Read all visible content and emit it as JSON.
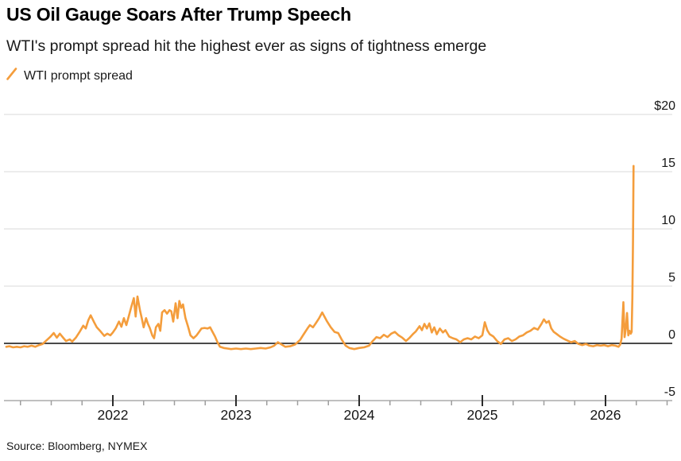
{
  "header": {
    "title": "US Oil Gauge Soars After Trump Speech",
    "subtitle": "WTI's prompt spread hit the highest ever as signs of tightness emerge"
  },
  "legend": {
    "items": [
      {
        "label": "WTI prompt spread",
        "marker": "slash-icon",
        "color": "#F49D3C"
      }
    ]
  },
  "source": "Source: Bloomberg, NYMEX",
  "colors": {
    "series": "#F49D3C",
    "gridline": "#D9D9D9",
    "zero_line": "#4A4A4A",
    "axis_line": "#ABABAB",
    "minor_tick": "#9E9E9E",
    "major_tick": "#2B2B2B",
    "text": "#161616"
  },
  "chart_data": {
    "type": "line",
    "title": "US Oil Gauge Soars After Trump Speech",
    "subtitle": "WTI's prompt spread hit the highest ever as signs of tightness emerge",
    "legend_position": "top-left",
    "grid": "horizontal",
    "y_axis": {
      "side": "right",
      "range": [
        -5,
        20
      ],
      "ticks": [
        {
          "value": 20,
          "label": "$20"
        },
        {
          "value": 15,
          "label": "15"
        },
        {
          "value": 10,
          "label": "10"
        },
        {
          "value": 5,
          "label": "5"
        },
        {
          "value": 0,
          "label": "0"
        },
        {
          "value": -5,
          "label": "-5"
        }
      ],
      "zero_line_emphasized": true
    },
    "x_axis": {
      "range_decimal_years": [
        2021.11,
        2026.55
      ],
      "minor_tick_interval_years": 0.25,
      "ticks_major": [
        {
          "t": 2022,
          "label": "2022"
        },
        {
          "t": 2023,
          "label": "2023"
        },
        {
          "t": 2024,
          "label": "2024"
        },
        {
          "t": 2025,
          "label": "2025"
        },
        {
          "t": 2026,
          "label": "2026"
        }
      ]
    },
    "series": [
      {
        "name": "WTI prompt spread",
        "color": "#F49D3C",
        "points": [
          [
            2021.135,
            -0.3
          ],
          [
            2021.16,
            -0.25
          ],
          [
            2021.19,
            -0.35
          ],
          [
            2021.22,
            -0.3
          ],
          [
            2021.25,
            -0.35
          ],
          [
            2021.28,
            -0.25
          ],
          [
            2021.31,
            -0.3
          ],
          [
            2021.34,
            -0.2
          ],
          [
            2021.37,
            -0.3
          ],
          [
            2021.4,
            -0.15
          ],
          [
            2021.43,
            -0.05
          ],
          [
            2021.46,
            0.25
          ],
          [
            2021.49,
            0.55
          ],
          [
            2021.52,
            0.9
          ],
          [
            2021.545,
            0.5
          ],
          [
            2021.57,
            0.85
          ],
          [
            2021.6,
            0.45
          ],
          [
            2021.62,
            0.2
          ],
          [
            2021.65,
            0.35
          ],
          [
            2021.67,
            0.15
          ],
          [
            2021.7,
            0.5
          ],
          [
            2021.73,
            1.0
          ],
          [
            2021.76,
            1.55
          ],
          [
            2021.78,
            1.3
          ],
          [
            2021.8,
            2.0
          ],
          [
            2021.82,
            2.45
          ],
          [
            2021.845,
            1.9
          ],
          [
            2021.87,
            1.4
          ],
          [
            2021.9,
            1.05
          ],
          [
            2021.93,
            0.65
          ],
          [
            2021.955,
            0.85
          ],
          [
            2021.98,
            0.7
          ],
          [
            2022.0,
            0.95
          ],
          [
            2022.025,
            1.35
          ],
          [
            2022.05,
            1.9
          ],
          [
            2022.07,
            1.45
          ],
          [
            2022.09,
            2.2
          ],
          [
            2022.11,
            1.6
          ],
          [
            2022.13,
            2.4
          ],
          [
            2022.15,
            3.2
          ],
          [
            2022.17,
            3.95
          ],
          [
            2022.185,
            2.35
          ],
          [
            2022.2,
            4.1
          ],
          [
            2022.22,
            2.9
          ],
          [
            2022.235,
            2.2
          ],
          [
            2022.25,
            1.4
          ],
          [
            2022.27,
            2.2
          ],
          [
            2022.285,
            1.7
          ],
          [
            2022.3,
            1.35
          ],
          [
            2022.32,
            0.7
          ],
          [
            2022.335,
            0.45
          ],
          [
            2022.35,
            1.4
          ],
          [
            2022.37,
            1.7
          ],
          [
            2022.385,
            1.1
          ],
          [
            2022.4,
            2.7
          ],
          [
            2022.42,
            2.9
          ],
          [
            2022.44,
            2.6
          ],
          [
            2022.46,
            2.9
          ],
          [
            2022.475,
            2.8
          ],
          [
            2022.49,
            1.9
          ],
          [
            2022.51,
            3.5
          ],
          [
            2022.525,
            2.2
          ],
          [
            2022.54,
            3.7
          ],
          [
            2022.555,
            3.1
          ],
          [
            2022.57,
            3.4
          ],
          [
            2022.59,
            2.2
          ],
          [
            2022.61,
            1.5
          ],
          [
            2022.63,
            0.7
          ],
          [
            2022.655,
            0.45
          ],
          [
            2022.68,
            0.7
          ],
          [
            2022.7,
            1.0
          ],
          [
            2022.72,
            1.3
          ],
          [
            2022.745,
            1.35
          ],
          [
            2022.77,
            1.3
          ],
          [
            2022.79,
            1.4
          ],
          [
            2022.81,
            1.0
          ],
          [
            2022.83,
            0.6
          ],
          [
            2022.85,
            0.1
          ],
          [
            2022.87,
            -0.3
          ],
          [
            2022.9,
            -0.4
          ],
          [
            2022.93,
            -0.45
          ],
          [
            2022.96,
            -0.5
          ],
          [
            2023.0,
            -0.45
          ],
          [
            2023.04,
            -0.5
          ],
          [
            2023.08,
            -0.45
          ],
          [
            2023.12,
            -0.5
          ],
          [
            2023.16,
            -0.45
          ],
          [
            2023.2,
            -0.4
          ],
          [
            2023.24,
            -0.45
          ],
          [
            2023.28,
            -0.35
          ],
          [
            2023.31,
            -0.2
          ],
          [
            2023.34,
            0.1
          ],
          [
            2023.37,
            -0.1
          ],
          [
            2023.4,
            -0.3
          ],
          [
            2023.44,
            -0.25
          ],
          [
            2023.48,
            -0.1
          ],
          [
            2023.52,
            0.3
          ],
          [
            2023.55,
            0.8
          ],
          [
            2023.58,
            1.3
          ],
          [
            2023.6,
            1.6
          ],
          [
            2023.625,
            1.4
          ],
          [
            2023.65,
            1.8
          ],
          [
            2023.675,
            2.2
          ],
          [
            2023.7,
            2.7
          ],
          [
            2023.72,
            2.3
          ],
          [
            2023.74,
            1.9
          ],
          [
            2023.77,
            1.4
          ],
          [
            2023.8,
            1.0
          ],
          [
            2023.83,
            0.9
          ],
          [
            2023.86,
            0.3
          ],
          [
            2023.89,
            -0.2
          ],
          [
            2023.92,
            -0.4
          ],
          [
            2023.96,
            -0.5
          ],
          [
            2024.0,
            -0.4
          ],
          [
            2024.04,
            -0.35
          ],
          [
            2024.08,
            -0.2
          ],
          [
            2024.11,
            0.2
          ],
          [
            2024.14,
            0.55
          ],
          [
            2024.17,
            0.45
          ],
          [
            2024.2,
            0.75
          ],
          [
            2024.23,
            0.55
          ],
          [
            2024.26,
            0.85
          ],
          [
            2024.29,
            1.0
          ],
          [
            2024.32,
            0.7
          ],
          [
            2024.35,
            0.5
          ],
          [
            2024.38,
            0.2
          ],
          [
            2024.41,
            0.5
          ],
          [
            2024.44,
            0.85
          ],
          [
            2024.46,
            1.05
          ],
          [
            2024.49,
            1.5
          ],
          [
            2024.51,
            1.15
          ],
          [
            2024.53,
            1.7
          ],
          [
            2024.55,
            1.3
          ],
          [
            2024.57,
            1.75
          ],
          [
            2024.59,
            0.95
          ],
          [
            2024.61,
            1.4
          ],
          [
            2024.63,
            0.8
          ],
          [
            2024.655,
            1.3
          ],
          [
            2024.68,
            0.95
          ],
          [
            2024.7,
            1.15
          ],
          [
            2024.73,
            0.6
          ],
          [
            2024.76,
            0.45
          ],
          [
            2024.79,
            0.35
          ],
          [
            2024.82,
            0.1
          ],
          [
            2024.85,
            0.35
          ],
          [
            2024.88,
            0.45
          ],
          [
            2024.91,
            0.35
          ],
          [
            2024.94,
            0.6
          ],
          [
            2024.97,
            0.45
          ],
          [
            2025.0,
            0.7
          ],
          [
            2025.02,
            1.85
          ],
          [
            2025.04,
            1.15
          ],
          [
            2025.06,
            0.8
          ],
          [
            2025.09,
            0.6
          ],
          [
            2025.12,
            0.2
          ],
          [
            2025.15,
            -0.05
          ],
          [
            2025.18,
            0.35
          ],
          [
            2025.21,
            0.45
          ],
          [
            2025.24,
            0.2
          ],
          [
            2025.27,
            0.35
          ],
          [
            2025.3,
            0.6
          ],
          [
            2025.33,
            0.7
          ],
          [
            2025.36,
            0.95
          ],
          [
            2025.39,
            1.1
          ],
          [
            2025.42,
            1.35
          ],
          [
            2025.45,
            1.2
          ],
          [
            2025.48,
            1.7
          ],
          [
            2025.5,
            2.1
          ],
          [
            2025.52,
            1.8
          ],
          [
            2025.54,
            1.95
          ],
          [
            2025.56,
            1.3
          ],
          [
            2025.58,
            1.0
          ],
          [
            2025.6,
            0.85
          ],
          [
            2025.63,
            0.6
          ],
          [
            2025.66,
            0.4
          ],
          [
            2025.69,
            0.25
          ],
          [
            2025.72,
            0.1
          ],
          [
            2025.75,
            0.2
          ],
          [
            2025.78,
            -0.05
          ],
          [
            2025.81,
            -0.15
          ],
          [
            2025.84,
            -0.05
          ],
          [
            2025.87,
            -0.2
          ],
          [
            2025.9,
            -0.25
          ],
          [
            2025.93,
            -0.15
          ],
          [
            2025.96,
            -0.2
          ],
          [
            2025.99,
            -0.15
          ],
          [
            2026.02,
            -0.25
          ],
          [
            2026.05,
            -0.15
          ],
          [
            2026.08,
            -0.2
          ],
          [
            2026.105,
            -0.3
          ],
          [
            2026.12,
            -0.1
          ],
          [
            2026.13,
            0.4
          ],
          [
            2026.145,
            3.6
          ],
          [
            2026.155,
            0.55
          ],
          [
            2026.165,
            1.3
          ],
          [
            2026.175,
            2.65
          ],
          [
            2026.185,
            0.7
          ],
          [
            2026.195,
            1.1
          ],
          [
            2026.205,
            0.85
          ],
          [
            2026.212,
            1.0
          ],
          [
            2026.218,
            4.0
          ],
          [
            2026.223,
            9.0
          ],
          [
            2026.228,
            15.5
          ]
        ]
      }
    ]
  }
}
